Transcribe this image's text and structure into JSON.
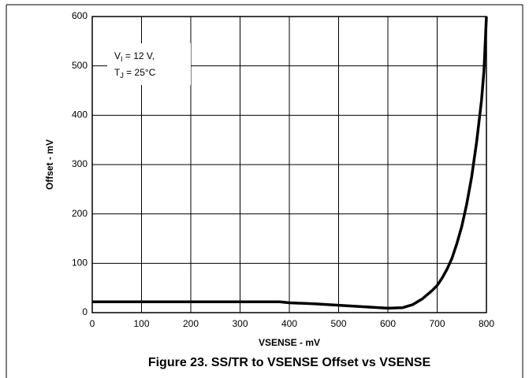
{
  "chart_data": {
    "type": "line",
    "title": "Figure 23. SS/TR to VSENSE Offset vs VSENSE",
    "x_label": "VSENSE - mV",
    "y_label": "Offset - mV",
    "annotation": [
      {
        "main": "V",
        "sub": "I",
        "rest": " = 12 V,"
      },
      {
        "main": "T",
        "sub": "J",
        "rest": " = 25°C"
      }
    ],
    "x": [
      0,
      50,
      100,
      200,
      300,
      380,
      400,
      450,
      500,
      550,
      600,
      630,
      650,
      670,
      690,
      700,
      710,
      720,
      730,
      740,
      750,
      760,
      770,
      780,
      790,
      795,
      800
    ],
    "series": [
      {
        "name": "Offset",
        "color": "#000000",
        "values": [
          22,
          22,
          22,
          22,
          22,
          22,
          20,
          18,
          15,
          12,
          9,
          10,
          16,
          28,
          45,
          55,
          70,
          88,
          110,
          140,
          175,
          220,
          275,
          345,
          430,
          490,
          600
        ]
      }
    ],
    "xlim": [
      0,
      800
    ],
    "xticks": [
      0,
      100,
      200,
      300,
      400,
      500,
      600,
      700,
      800
    ],
    "ylim": [
      0,
      600
    ],
    "yticks": [
      0,
      100,
      200,
      300,
      400,
      500,
      600
    ],
    "grid": true
  }
}
